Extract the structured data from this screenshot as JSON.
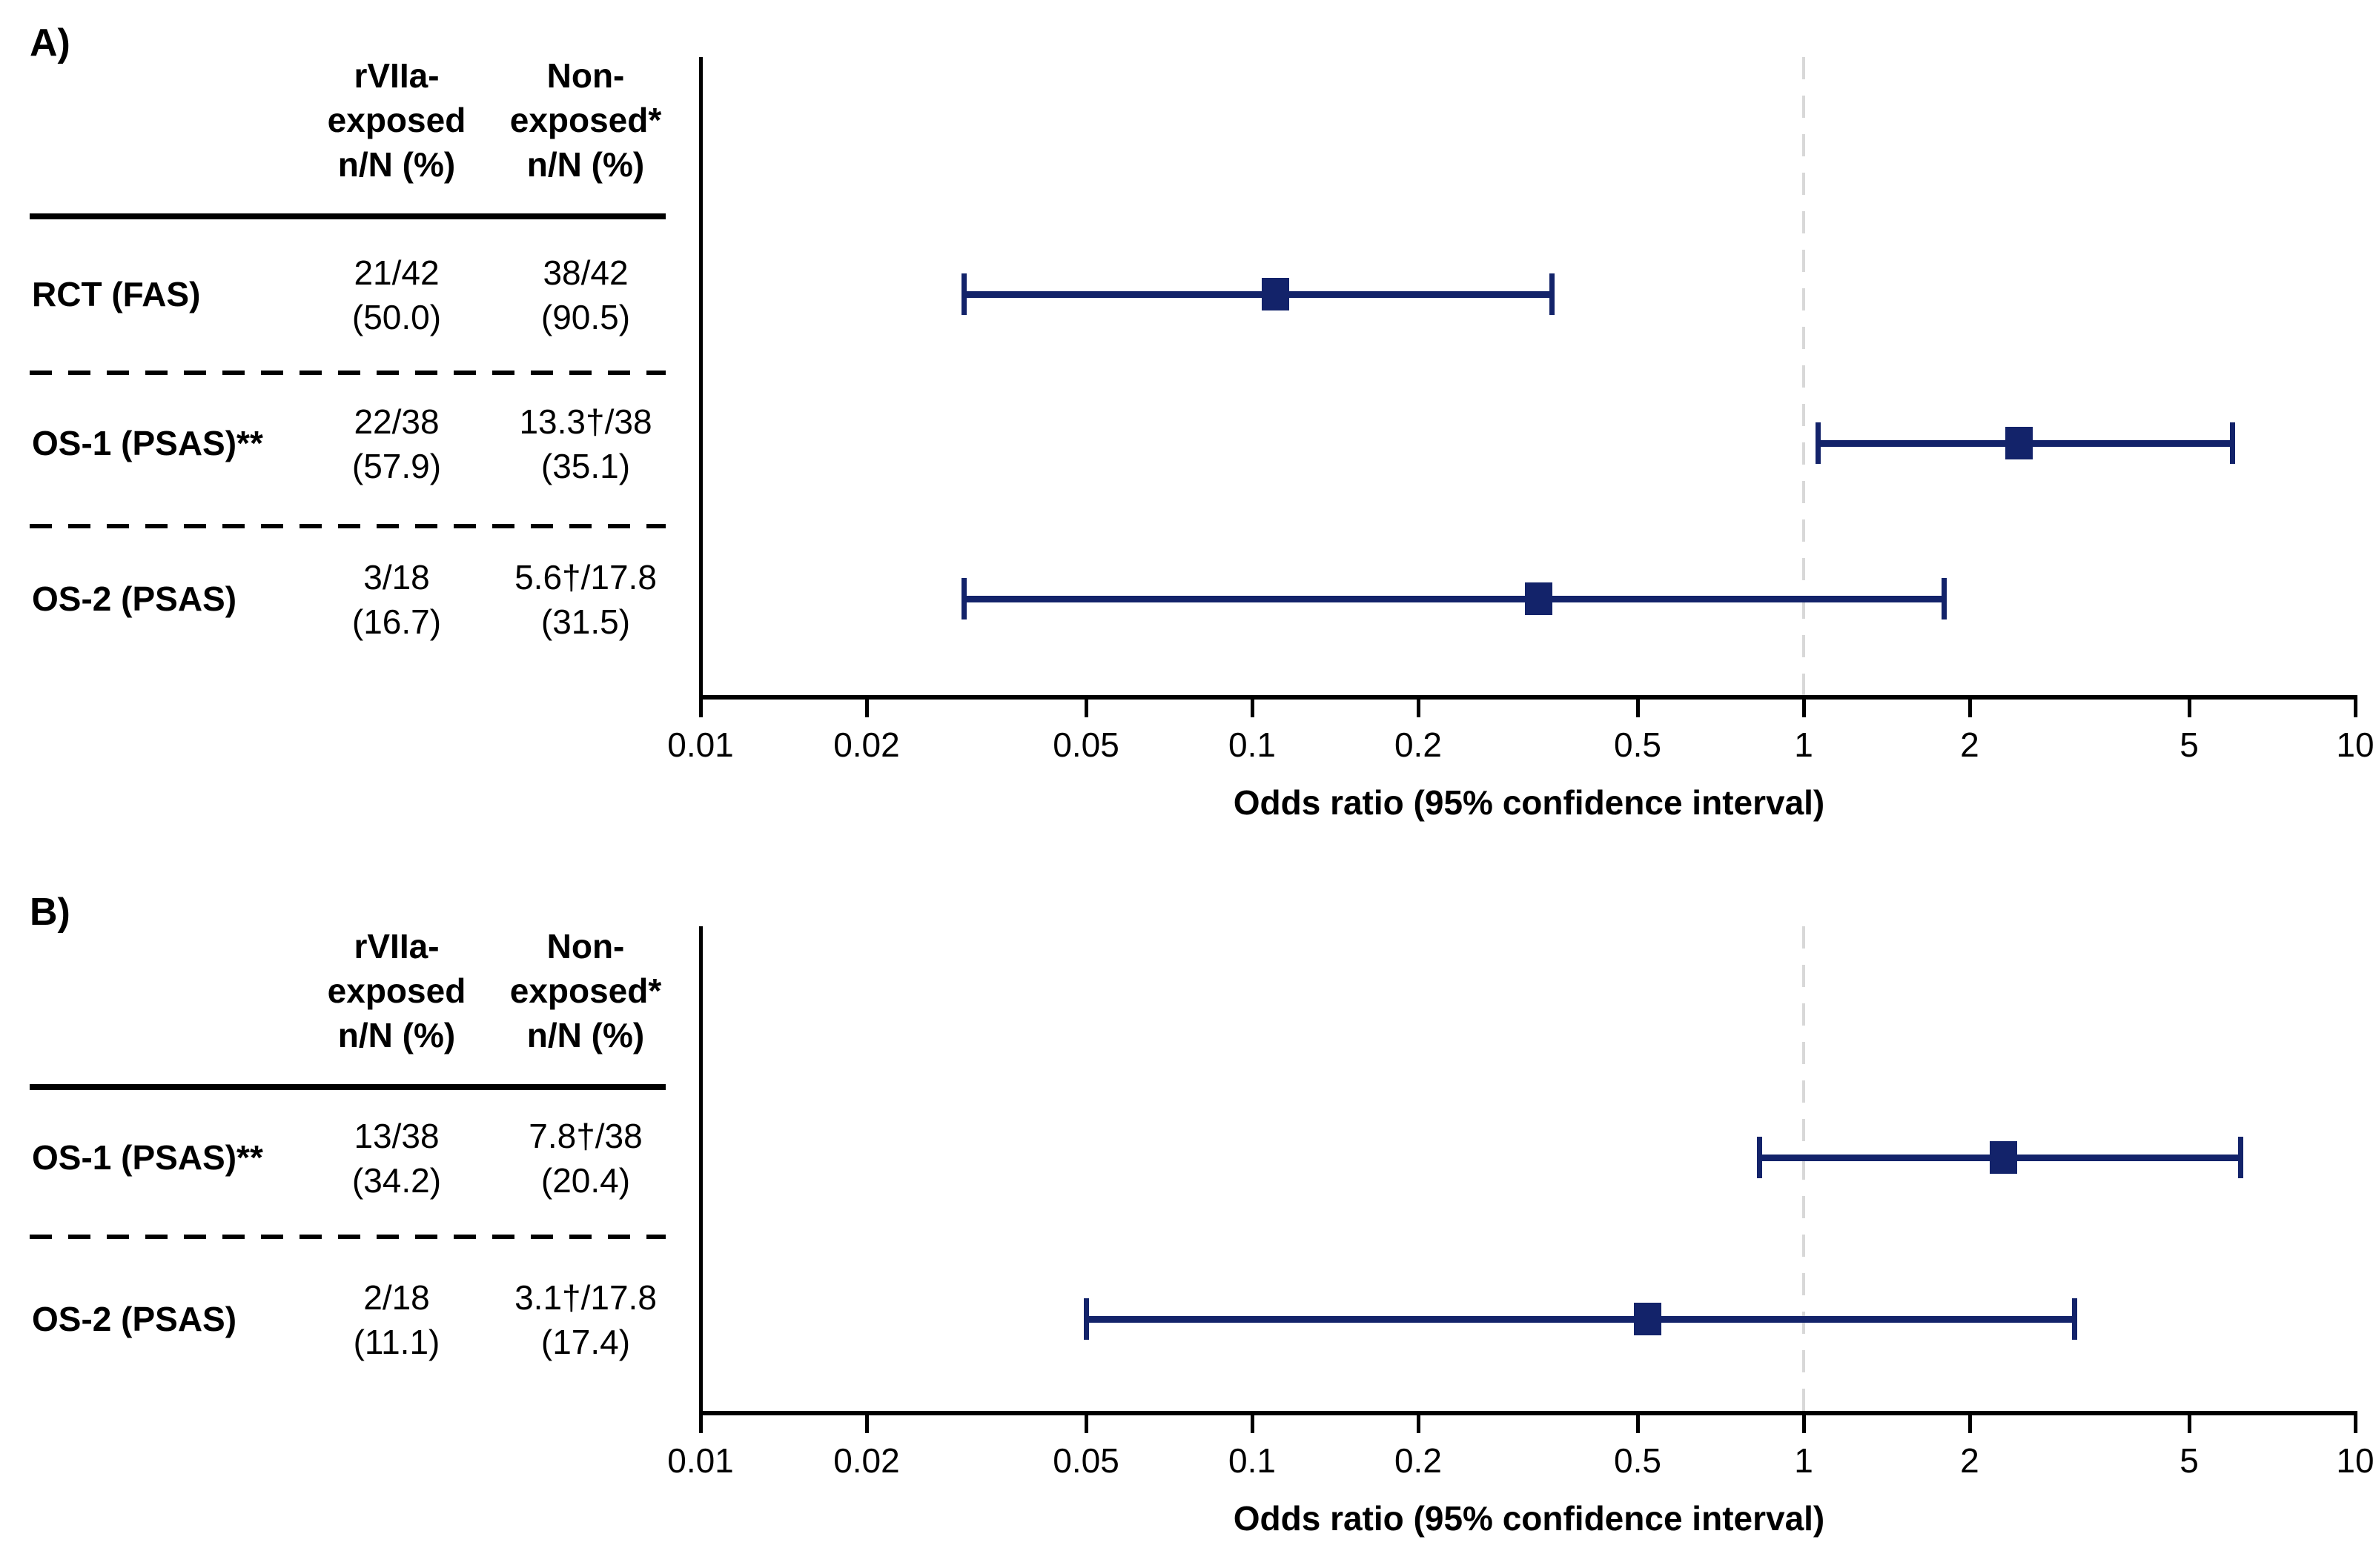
{
  "colors": {
    "marker": "#13236a",
    "ci_line": "#13236a",
    "ref_line": "#d8d8d8",
    "text": "#000000",
    "background": "#ffffff"
  },
  "chart_data": [
    {
      "type": "forest",
      "panel_label": "A)",
      "x_scale": "log",
      "xlim": [
        0.01,
        10
      ],
      "x_ticks": [
        "0.01",
        "0.02",
        "0.05",
        "0.1",
        "0.2",
        "0.5",
        "1",
        "2",
        "5",
        "10"
      ],
      "xlabel": "Odds ratio (95% confidence interval)",
      "ref_line_value": 1,
      "grid": "off",
      "col_headers": [
        "rVIIa-\nexposed\nn/N (%)",
        "Non-\nexposed*\nn/N (%)"
      ],
      "rows": [
        {
          "label": "RCT (FAS)",
          "exposed": "21/42\n(50.0)",
          "non_exposed": "38/42\n(90.5)",
          "or": 0.11,
          "ci_low": 0.03,
          "ci_high": 0.35
        },
        {
          "label": "OS-1 (PSAS)**",
          "exposed": "22/38\n(57.9)",
          "non_exposed": "13.3†/38\n(35.1)",
          "or": 2.45,
          "ci_low": 1.06,
          "ci_high": 6.0
        },
        {
          "label": "OS-2 (PSAS)",
          "exposed": "3/18\n(16.7)",
          "non_exposed": "5.6†/17.8\n(31.5)",
          "or": 0.33,
          "ci_low": 0.03,
          "ci_high": 1.8
        }
      ]
    },
    {
      "type": "forest",
      "panel_label": "B)",
      "x_scale": "log",
      "xlim": [
        0.01,
        10
      ],
      "x_ticks": [
        "0.01",
        "0.02",
        "0.05",
        "0.1",
        "0.2",
        "0.5",
        "1",
        "2",
        "5",
        "10"
      ],
      "xlabel": "Odds ratio (95% confidence interval)",
      "ref_line_value": 1,
      "grid": "off",
      "col_headers": [
        "rVIIa-\nexposed\nn/N (%)",
        "Non-\nexposed*\nn/N (%)"
      ],
      "rows": [
        {
          "label": "OS-1 (PSAS)**",
          "exposed": "13/38\n(34.2)",
          "non_exposed": "7.8†/38\n(20.4)",
          "or": 2.3,
          "ci_low": 0.83,
          "ci_high": 6.2
        },
        {
          "label": "OS-2 (PSAS)",
          "exposed": "2/18\n(11.1)",
          "non_exposed": "3.1†/17.8\n(17.4)",
          "or": 0.52,
          "ci_low": 0.05,
          "ci_high": 3.1
        }
      ]
    }
  ]
}
